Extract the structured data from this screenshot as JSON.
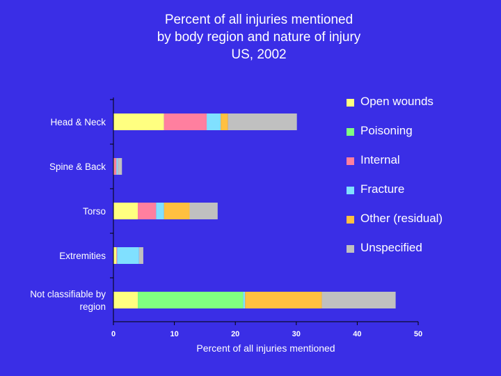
{
  "title_lines": [
    "Percent of all injuries mentioned",
    "by body region and nature of injury",
    "US, 2002"
  ],
  "colors": {
    "background": "#3a2ee6",
    "text": "#ffffff",
    "open_wounds": "#ffff80",
    "poisoning": "#80ff80",
    "internal": "#ff7f9f",
    "fracture": "#80e0ff",
    "other_residual": "#ffc040",
    "unspecified": "#c0c0c0"
  },
  "legend": [
    {
      "label": "Open wounds",
      "color": "#ffff80"
    },
    {
      "label": "Poisoning",
      "color": "#80ff80"
    },
    {
      "label": "Internal",
      "color": "#ff7f9f"
    },
    {
      "label": "Fracture",
      "color": "#80e0ff"
    },
    {
      "label": "Other (residual)",
      "color": "#ffc040"
    },
    {
      "label": "Unspecified",
      "color": "#c0c0c0"
    }
  ],
  "chart_data": {
    "type": "bar",
    "orientation": "horizontal",
    "stacked": true,
    "categories": [
      "Head & Neck",
      "Spine & Back",
      "Torso",
      "Extremities",
      "Not classifiable by region"
    ],
    "category_label_lines": [
      [
        "Head & Neck"
      ],
      [
        "Spine & Back"
      ],
      [
        "Torso"
      ],
      [
        "Extremities"
      ],
      [
        "Not classifiable by",
        "region"
      ]
    ],
    "series": [
      {
        "name": "Open wounds",
        "color": "#ffff80",
        "values": [
          8.3,
          0.1,
          4.0,
          0.5,
          4.0
        ]
      },
      {
        "name": "Poisoning",
        "color": "#80ff80",
        "values": [
          0,
          0,
          0,
          0,
          17.3
        ]
      },
      {
        "name": "Internal",
        "color": "#ff7f9f",
        "values": [
          7.0,
          0.4,
          3.0,
          0.1,
          0
        ]
      },
      {
        "name": "Fracture",
        "color": "#80e0ff",
        "values": [
          2.3,
          0.2,
          1.3,
          3.6,
          0.3
        ]
      },
      {
        "name": "Other (residual)",
        "color": "#ffc040",
        "values": [
          1.2,
          0,
          4.2,
          0,
          12.6
        ]
      },
      {
        "name": "Unspecified",
        "color": "#c0c0c0",
        "values": [
          11.3,
          0.7,
          4.6,
          0.7,
          12.1
        ]
      }
    ],
    "xlabel": "Percent of all injuries mentioned",
    "ylabel": "",
    "xlim": [
      0,
      50
    ],
    "xticks": [
      0,
      10,
      20,
      30,
      40,
      50
    ],
    "grid": false,
    "legend_position": "right"
  }
}
